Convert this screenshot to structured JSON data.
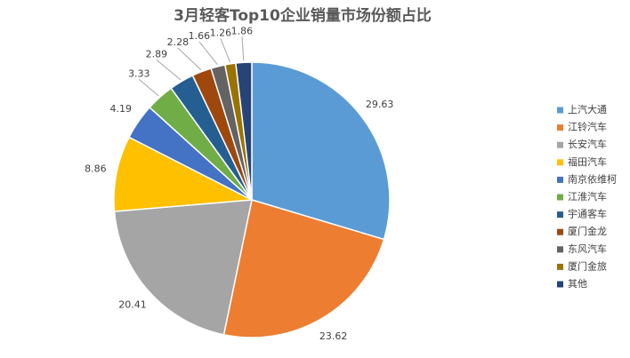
{
  "chart_data": {
    "type": "pie",
    "title": "3月轻客Top10企业销量市场份额占比",
    "categories": [
      "上汽大通",
      "江铃汽车",
      "长安汽车",
      "福田汽车",
      "南京依维柯",
      "江淮汽车",
      "宇通客车",
      "厦门金龙",
      "东风汽车",
      "厦门金旅",
      "其他"
    ],
    "values": [
      29.63,
      23.62,
      20.41,
      8.86,
      4.19,
      3.33,
      2.89,
      2.28,
      1.66,
      1.26,
      1.86
    ],
    "colors": [
      "#5b9bd5",
      "#ed7d31",
      "#a5a5a5",
      "#ffc000",
      "#4472c4",
      "#70ad47",
      "#255e91",
      "#9e480e",
      "#636363",
      "#997300",
      "#264478"
    ],
    "legend": "right"
  }
}
